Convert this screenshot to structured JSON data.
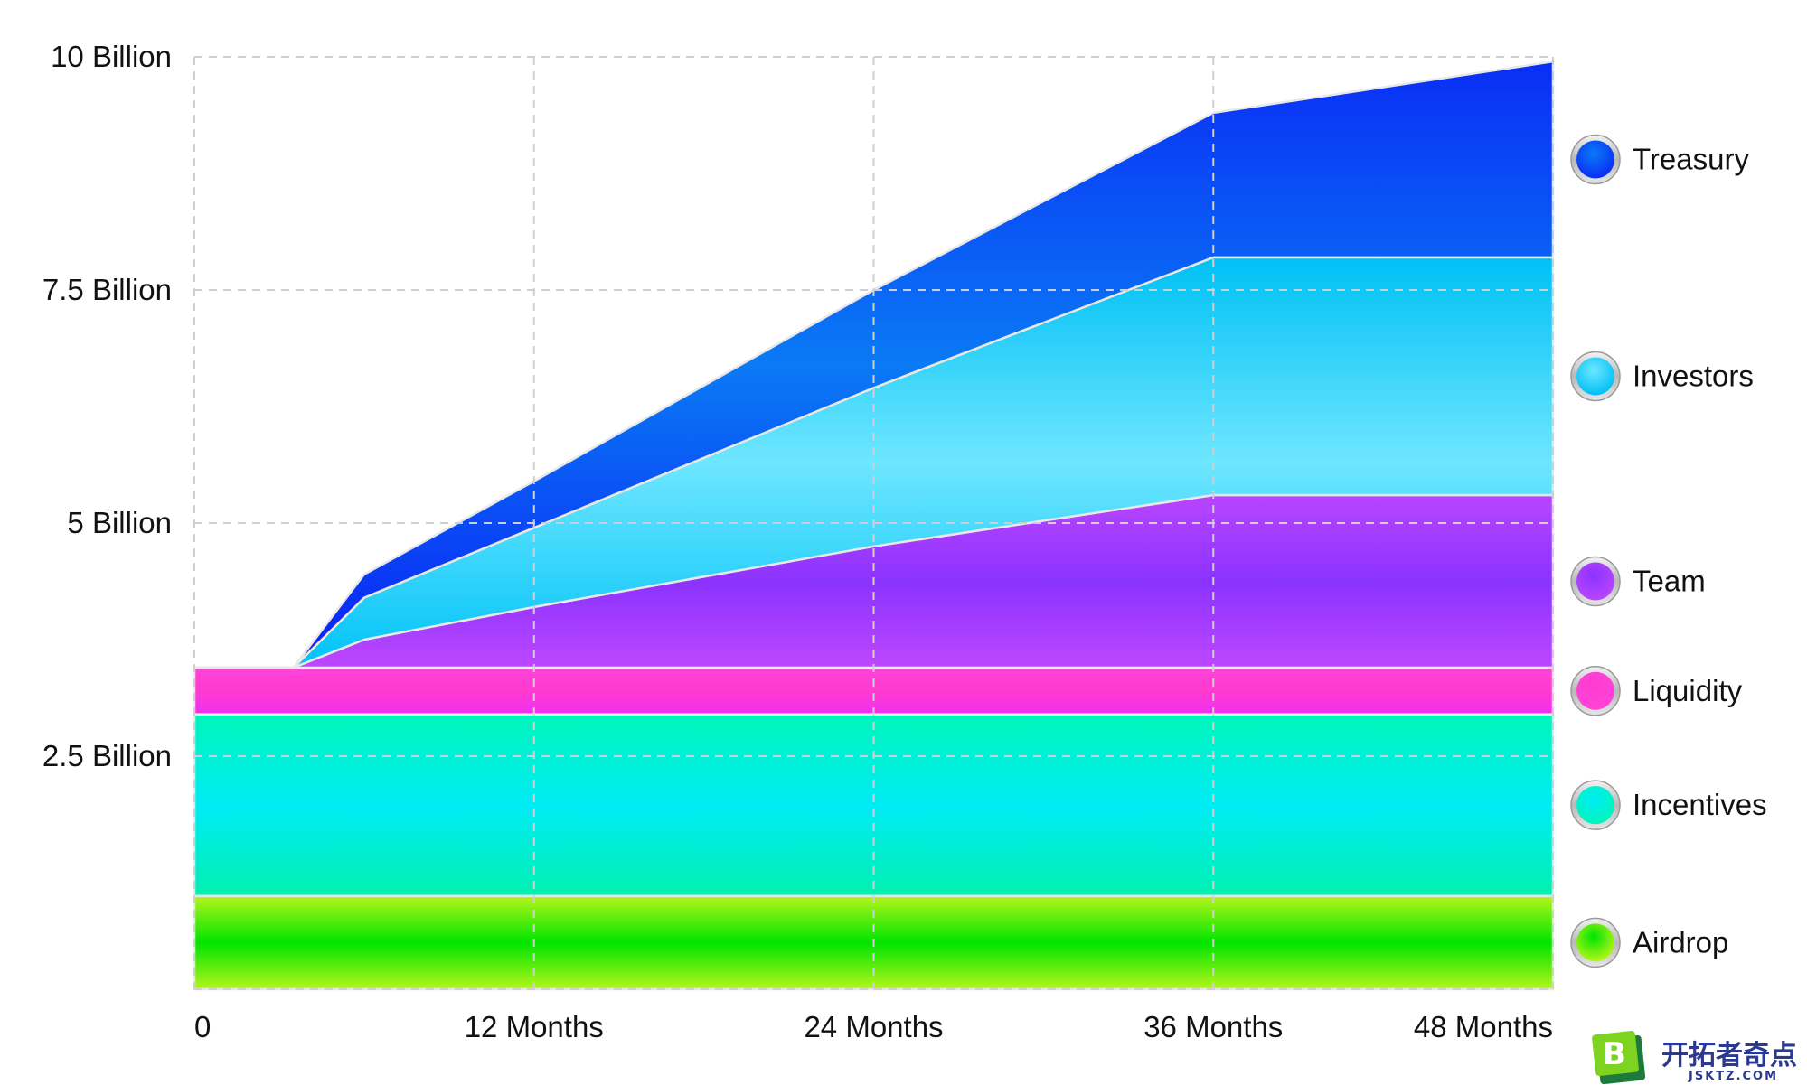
{
  "chart_data": {
    "type": "area",
    "stacked": true,
    "x": [
      0,
      3.5,
      6,
      12,
      24,
      36,
      48
    ],
    "x_ticks": [
      {
        "value": 0,
        "label": "0"
      },
      {
        "value": 12,
        "label": "12 Months"
      },
      {
        "value": 24,
        "label": "24 Months"
      },
      {
        "value": 36,
        "label": "36 Months"
      },
      {
        "value": 48,
        "label": "48 Months"
      }
    ],
    "y_ticks": [
      {
        "value": 2.5,
        "label": "2.5 Billion"
      },
      {
        "value": 5,
        "label": "5 Billion"
      },
      {
        "value": 7.5,
        "label": "7.5 Billion"
      },
      {
        "value": 10,
        "label": "10 Billion"
      }
    ],
    "xlim": [
      0,
      48
    ],
    "ylim": [
      0,
      10
    ],
    "grid": true,
    "legend_position": "right",
    "series": [
      {
        "name": "Airdrop",
        "values": [
          1.0,
          1.0,
          1.0,
          1.0,
          1.0,
          1.0,
          1.0
        ],
        "colors": [
          "#b5f51a",
          "#00e400",
          "#b5f51a"
        ]
      },
      {
        "name": "Incentives",
        "values": [
          1.95,
          1.95,
          1.95,
          1.95,
          1.95,
          1.95,
          1.95
        ],
        "colors": [
          "#00f5b9",
          "#00ecf5",
          "#00f0b0"
        ]
      },
      {
        "name": "Liquidity",
        "values": [
          0.5,
          0.5,
          0.5,
          0.5,
          0.5,
          0.5,
          0.5
        ],
        "colors": [
          "#ff44d8",
          "#ff3ad0",
          "#f030f0"
        ]
      },
      {
        "name": "Team",
        "values": [
          0,
          0,
          0.3,
          0.65,
          1.3,
          1.85,
          1.85
        ],
        "colors": [
          "#b945ff",
          "#8b33ff",
          "#bd47ff"
        ]
      },
      {
        "name": "Investors",
        "values": [
          0,
          0,
          0.45,
          0.85,
          1.7,
          2.55,
          2.55
        ],
        "colors": [
          "#00c0f5",
          "#6ee6ff",
          "#00c3f8"
        ]
      },
      {
        "name": "Treasury",
        "values": [
          0,
          0,
          0.25,
          0.5,
          1.05,
          1.55,
          2.1
        ],
        "colors": [
          "#0a2ef5",
          "#0a7af5",
          "#0a1ef5"
        ]
      }
    ]
  },
  "watermark": {
    "badge_letter": "B",
    "title": "开拓者奇点",
    "subtitle": "JSKTZ.COM"
  }
}
